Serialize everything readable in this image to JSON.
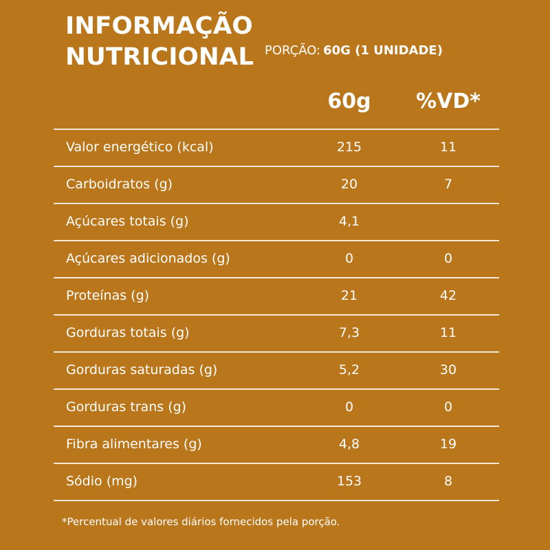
{
  "header": {
    "title_line1": "INFORMAÇÃO",
    "title_line2": "NUTRICIONAL",
    "portion_label": "PORÇÃO:",
    "portion_value": "60G (1 UNIDADE)"
  },
  "columns": {
    "amount": "60g",
    "dv": "%VD*"
  },
  "rows": [
    {
      "label": "Valor energético (kcal)",
      "amount": "215",
      "dv": "11"
    },
    {
      "label": "Carboidratos (g)",
      "amount": "20",
      "dv": "7"
    },
    {
      "label": "Açúcares totais (g)",
      "amount": "4,1",
      "dv": ""
    },
    {
      "label": "Açúcares adicionados (g)",
      "amount": "0",
      "dv": "0"
    },
    {
      "label": "Proteínas (g)",
      "amount": "21",
      "dv": "42"
    },
    {
      "label": "Gorduras totais (g)",
      "amount": "7,3",
      "dv": "11"
    },
    {
      "label": "Gorduras saturadas (g)",
      "amount": "5,2",
      "dv": "30"
    },
    {
      "label": "Gorduras trans (g)",
      "amount": "0",
      "dv": "0"
    },
    {
      "label": "Fibra alimentares (g)",
      "amount": "4,8",
      "dv": "19"
    },
    {
      "label": "Sódio (mg)",
      "amount": "153",
      "dv": "8"
    }
  ],
  "footnote": "*Percentual de valores diários fornecidos pela porção.",
  "colors": {
    "background": "#b9761a",
    "text": "#ffffff",
    "rule": "#f3ead9"
  }
}
